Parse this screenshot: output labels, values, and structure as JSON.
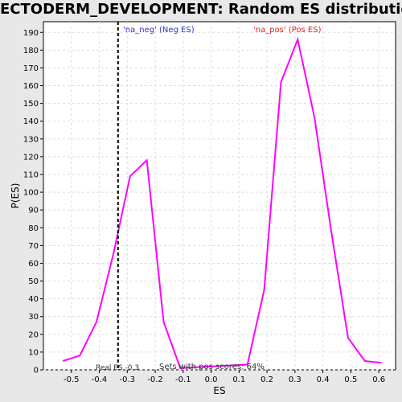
{
  "chart_data": {
    "type": "line",
    "title": "ECTODERM_DEVELOPMENT: Random ES distribution",
    "xlabel": "ES",
    "ylabel": "P(ES)",
    "xlim": [
      -0.6,
      0.66
    ],
    "ylim": [
      0,
      196
    ],
    "x_ticks": [
      -0.5,
      -0.4,
      -0.3,
      -0.2,
      -0.1,
      0.0,
      0.1,
      0.2,
      0.3,
      0.4,
      0.5,
      0.6
    ],
    "x_tick_labels": [
      "-0.5",
      "-0.4",
      "-0.3",
      "-0.2",
      "-0.1",
      "0.0",
      "0.1",
      "0.2",
      "0.3",
      "0.4",
      "0.5",
      "0.6"
    ],
    "y_ticks": [
      0,
      10,
      20,
      30,
      40,
      50,
      60,
      70,
      80,
      90,
      100,
      110,
      120,
      130,
      140,
      150,
      160,
      170,
      180,
      190
    ],
    "grid": true,
    "series": [
      {
        "color": "#ff00ff",
        "x": [
          -0.53,
          -0.47,
          -0.41,
          -0.35,
          -0.29,
          -0.23,
          -0.17,
          -0.11,
          0.13,
          0.19,
          0.25,
          0.31,
          0.37,
          0.43,
          0.49,
          0.55,
          0.61
        ],
        "y": [
          5,
          8,
          27,
          65,
          109,
          118,
          27,
          1,
          3,
          45,
          162,
          186,
          142,
          78,
          18,
          5,
          4
        ]
      }
    ],
    "vline": {
      "x": -0.333,
      "style": "dashed",
      "color": "#000000"
    },
    "annotations": {
      "neg_label": "'na_neg' (Neg ES)",
      "neg_color": "#3333cc",
      "pos_label": "'na_pos' (Pos ES)",
      "pos_color": "#e02020",
      "real_es": "Real ES -0.3",
      "pos_scores": "Sets with pos scores: 64%"
    }
  }
}
